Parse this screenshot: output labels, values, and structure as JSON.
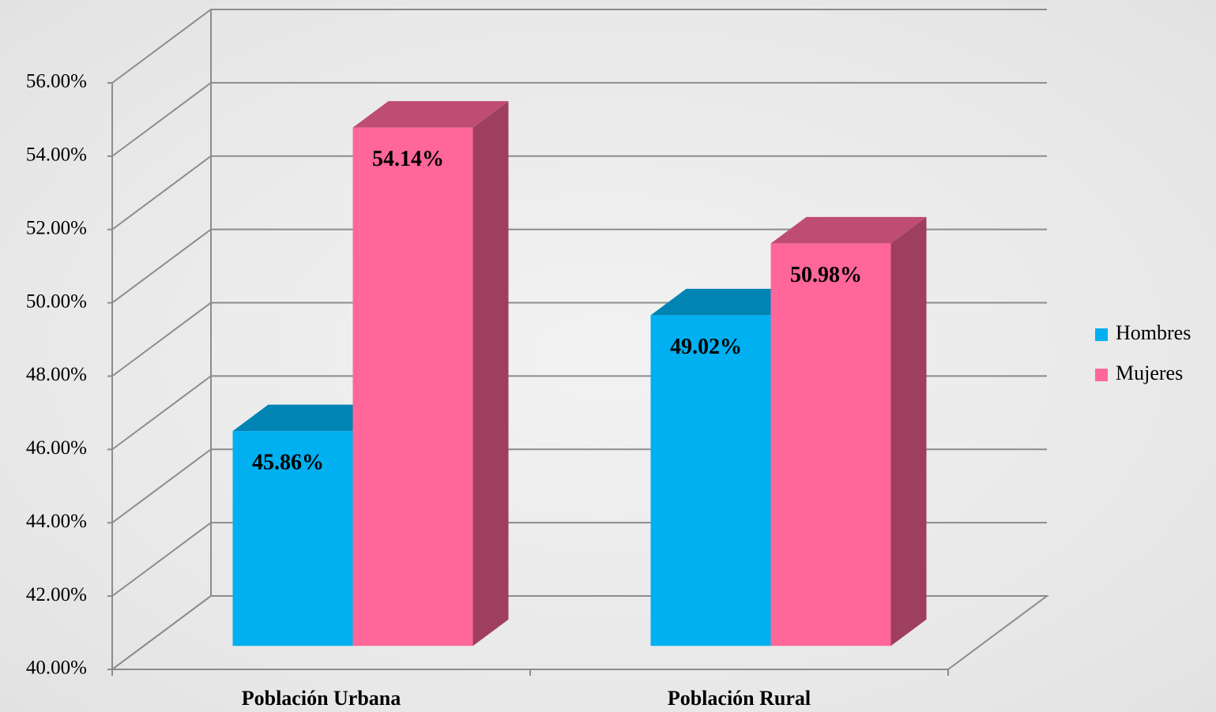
{
  "chart_data": {
    "type": "bar3d",
    "categories": [
      "Población Urbana",
      "Población Rural"
    ],
    "series": [
      {
        "name": "Hombres",
        "color": "#00b0f0",
        "values": [
          45.86,
          49.02
        ],
        "value_labels": [
          "45.86%",
          "49.02%"
        ]
      },
      {
        "name": "Mujeres",
        "color": "#ff6699",
        "values": [
          54.14,
          50.98
        ],
        "value_labels": [
          "54.14%",
          "50.98%"
        ]
      }
    ],
    "ylim": [
      40,
      56
    ],
    "yticks": [
      {
        "value": 40,
        "label": "40.00%"
      },
      {
        "value": 42,
        "label": "42.00%"
      },
      {
        "value": 44,
        "label": "44.00%"
      },
      {
        "value": 46,
        "label": "46.00%"
      },
      {
        "value": 48,
        "label": "48.00%"
      },
      {
        "value": 50,
        "label": "50.00%"
      },
      {
        "value": 52,
        "label": "52.00%"
      },
      {
        "value": 54,
        "label": "54.00%"
      },
      {
        "value": 56,
        "label": "56.00%"
      }
    ],
    "grid": true,
    "legend": "right"
  }
}
